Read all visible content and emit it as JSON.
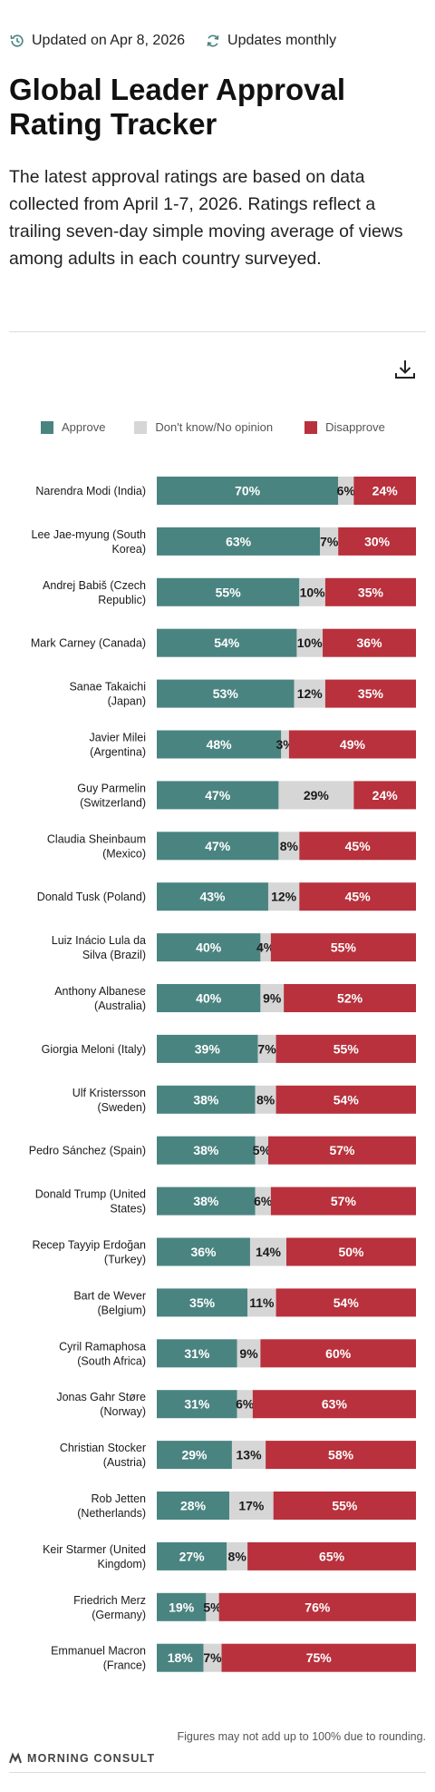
{
  "header": {
    "updated_label": "Updated on Apr 8, 2026",
    "frequency_label": "Updates monthly"
  },
  "title": "Global Leader Approval Rating Tracker",
  "subtitle": "The latest approval ratings are based on data collected from April 1-7, 2026. Ratings reflect a trailing seven-day simple moving average of views among adults in each country surveyed.",
  "footnote": "Figures may not add up to 100% due to rounding.",
  "brand": "MORNING CONSULT",
  "colors": {
    "approve": "#4a8481",
    "dont_know": "#d6d6d6",
    "disapprove": "#b8313c"
  },
  "chart_data": {
    "type": "bar",
    "stacked": true,
    "orientation": "horizontal",
    "legend": [
      "Approve",
      "Don't know/No opinion",
      "Disapprove"
    ],
    "legend_position": "top",
    "categories": [
      [
        "Narendra Modi (India)"
      ],
      [
        "Lee Jae-myung (South",
        "Korea)"
      ],
      [
        "Andrej Babiš (Czech",
        "Republic)"
      ],
      [
        "Mark Carney (Canada)"
      ],
      [
        "Sanae Takaichi",
        "(Japan)"
      ],
      [
        "Javier Milei",
        "(Argentina)"
      ],
      [
        "Guy Parmelin",
        "(Switzerland)"
      ],
      [
        "Claudia Sheinbaum",
        "(Mexico)"
      ],
      [
        "Donald Tusk (Poland)"
      ],
      [
        "Luiz Inácio Lula da",
        "Silva (Brazil)"
      ],
      [
        "Anthony Albanese",
        "(Australia)"
      ],
      [
        "Giorgia Meloni (Italy)"
      ],
      [
        "Ulf Kristersson",
        "(Sweden)"
      ],
      [
        "Pedro Sánchez (Spain)"
      ],
      [
        "Donald Trump (United",
        "States)"
      ],
      [
        "Recep Tayyip Erdoğan",
        "(Turkey)"
      ],
      [
        "Bart de Wever",
        "(Belgium)"
      ],
      [
        "Cyril Ramaphosa",
        "(South Africa)"
      ],
      [
        "Jonas Gahr Støre",
        "(Norway)"
      ],
      [
        "Christian Stocker",
        "(Austria)"
      ],
      [
        "Rob Jetten",
        "(Netherlands)"
      ],
      [
        "Keir Starmer (United",
        "Kingdom)"
      ],
      [
        "Friedrich Merz",
        "(Germany)"
      ],
      [
        "Emmanuel Macron",
        "(France)"
      ]
    ],
    "series": [
      {
        "name": "Approve",
        "values": [
          70,
          63,
          55,
          54,
          53,
          48,
          47,
          47,
          43,
          40,
          40,
          39,
          38,
          38,
          38,
          36,
          35,
          31,
          31,
          29,
          28,
          27,
          19,
          18
        ]
      },
      {
        "name": "Don't know/No opinion",
        "values": [
          6,
          7,
          10,
          10,
          12,
          3,
          29,
          8,
          12,
          4,
          9,
          7,
          8,
          5,
          6,
          14,
          11,
          9,
          6,
          13,
          17,
          8,
          5,
          7
        ]
      },
      {
        "name": "Disapprove",
        "values": [
          24,
          30,
          35,
          36,
          35,
          49,
          24,
          45,
          45,
          55,
          52,
          55,
          54,
          57,
          57,
          50,
          54,
          60,
          63,
          58,
          55,
          65,
          76,
          75
        ]
      }
    ],
    "value_suffix": "%",
    "xlim": [
      0,
      100
    ]
  }
}
